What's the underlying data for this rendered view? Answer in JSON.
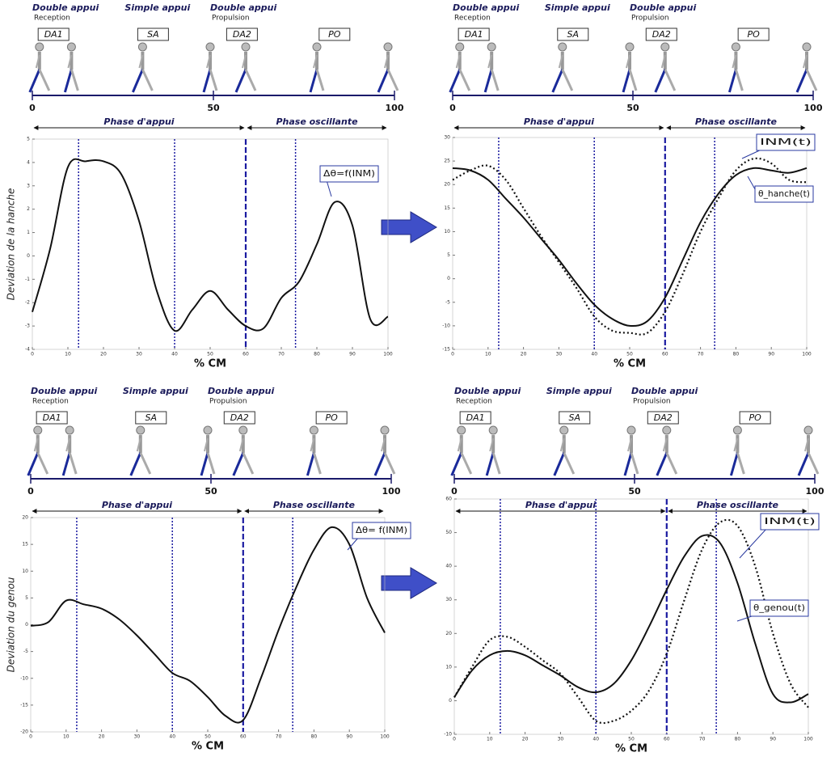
{
  "chart_data": [
    {
      "type": "line",
      "header": {
        "phases": [
          {
            "name": "Double appui",
            "sub": "Reception"
          },
          {
            "name": "Simple appui"
          },
          {
            "name": "Double appui",
            "sub": "Propulsion"
          }
        ],
        "boxes": [
          "DA1",
          "SA",
          "DA2",
          "PO"
        ],
        "scale_ticks": [
          0,
          50,
          100
        ],
        "support": "Phase d'appui",
        "swing": "Phase oscillante"
      },
      "ylabel": "Deviation de la hanche",
      "xlabel": "% CM",
      "x": [
        0,
        5,
        10,
        15,
        20,
        25,
        30,
        35,
        40,
        45,
        50,
        55,
        60,
        65,
        70,
        75,
        80,
        85,
        90,
        95,
        100
      ],
      "series": [
        {
          "name": "Δθ=f(INM)",
          "color": "#111111",
          "dash": false,
          "values": [
            -2.4,
            0.3,
            3.8,
            4.05,
            4.05,
            3.5,
            1.5,
            -1.5,
            -3.2,
            -2.3,
            -1.5,
            -2.3,
            -3.0,
            -3.1,
            -1.8,
            -1.1,
            0.5,
            2.3,
            1.3,
            -2.7,
            -2.6
          ]
        }
      ],
      "vlines": [
        13,
        40,
        60,
        74
      ],
      "xlim": [
        0,
        100
      ],
      "xticks": [
        0,
        10,
        20,
        30,
        40,
        50,
        60,
        70,
        80,
        90,
        100
      ],
      "ylim": [
        -4,
        5
      ],
      "yticks": [
        -4,
        -3,
        -2,
        -1,
        0,
        1,
        2,
        3,
        4,
        5
      ]
    },
    {
      "type": "line",
      "header": {
        "phases": [
          {
            "name": "Double appui",
            "sub": "Reception"
          },
          {
            "name": "Simple appui"
          },
          {
            "name": "Double appui",
            "sub": "Propulsion"
          }
        ],
        "boxes": [
          "DA1",
          "SA",
          "DA2",
          "PO"
        ],
        "scale_ticks": [
          0,
          50,
          100
        ],
        "support": "Phase d'appui",
        "swing": "Phase oscillante"
      },
      "xlabel": "% CM",
      "x": [
        0,
        5,
        10,
        15,
        20,
        25,
        30,
        35,
        40,
        45,
        50,
        55,
        60,
        65,
        70,
        75,
        80,
        85,
        90,
        95,
        100
      ],
      "series": [
        {
          "name": "INM(t)",
          "color": "#111111",
          "dash": true,
          "values": [
            21,
            23,
            24,
            21,
            15,
            9,
            3.5,
            -2,
            -8,
            -11,
            -11.5,
            -11.5,
            -7,
            1,
            10,
            17,
            23,
            25.5,
            24.5,
            21,
            20.5
          ]
        },
        {
          "name": "θ_hanche(t)",
          "color": "#111111",
          "dash": false,
          "values": [
            23.5,
            23,
            21,
            17,
            13,
            8.5,
            4,
            -1,
            -5.5,
            -8.5,
            -10,
            -9,
            -4,
            4,
            12,
            18,
            22,
            23.5,
            23,
            22.5,
            23.5
          ]
        }
      ],
      "vlines": [
        13,
        40,
        60,
        74
      ],
      "xlim": [
        0,
        100
      ],
      "xticks": [
        0,
        10,
        20,
        30,
        40,
        50,
        60,
        70,
        80,
        90,
        100
      ],
      "ylim": [
        -15,
        30
      ],
      "yticks": [
        -15,
        -10,
        -5,
        0,
        5,
        10,
        15,
        20,
        25,
        30
      ]
    },
    {
      "type": "line",
      "header": {
        "phases": [
          {
            "name": "Double appui",
            "sub": "Reception"
          },
          {
            "name": "Simple appui"
          },
          {
            "name": "Double appui",
            "sub": "Propulsion"
          }
        ],
        "boxes": [
          "DA1",
          "SA",
          "DA2",
          "PO"
        ],
        "scale_ticks": [
          0,
          50,
          100
        ],
        "support": "Phase d'appui",
        "swing": "Phase oscillante"
      },
      "ylabel": "Deviation du genou",
      "xlabel": "% CM",
      "x": [
        0,
        5,
        10,
        15,
        20,
        25,
        30,
        35,
        40,
        45,
        50,
        55,
        60,
        65,
        70,
        75,
        80,
        85,
        90,
        95,
        100
      ],
      "series": [
        {
          "name": "Δθ= f(INM)",
          "color": "#111111",
          "dash": false,
          "values": [
            -0.2,
            0.5,
            4.5,
            3.8,
            3,
            1,
            -2,
            -5.5,
            -9,
            -10.5,
            -13.5,
            -17,
            -17.8,
            -10,
            -1,
            7,
            14,
            18.2,
            15,
            5,
            -1.5
          ]
        }
      ],
      "vlines": [
        13,
        40,
        60,
        74
      ],
      "xlim": [
        0,
        100
      ],
      "xticks": [
        0,
        10,
        20,
        30,
        40,
        50,
        60,
        70,
        80,
        90,
        100
      ],
      "ylim": [
        -20,
        20
      ],
      "yticks": [
        -20,
        -15,
        -10,
        -5,
        0,
        5,
        10,
        15,
        20
      ]
    },
    {
      "type": "line",
      "header": {
        "phases": [
          {
            "name": "Double appui",
            "sub": "Reception"
          },
          {
            "name": "Simple appui"
          },
          {
            "name": "Double appui",
            "sub": "Propulsion"
          }
        ],
        "boxes": [
          "DA1",
          "SA",
          "DA2",
          "PO"
        ],
        "scale_ticks": [
          0,
          50,
          100
        ],
        "support": "Phase d'appui",
        "swing": "Phase oscillante"
      },
      "xlabel": "% CM",
      "x": [
        0,
        5,
        10,
        15,
        20,
        25,
        30,
        35,
        40,
        45,
        50,
        55,
        60,
        65,
        70,
        75,
        80,
        85,
        90,
        95,
        100
      ],
      "series": [
        {
          "name": "INM(t)",
          "color": "#111111",
          "dash": true,
          "values": [
            1,
            10,
            18,
            19,
            16,
            12,
            8,
            1,
            -6,
            -6,
            -3,
            3,
            14,
            30,
            45,
            53,
            52,
            40,
            20,
            5,
            -2
          ]
        },
        {
          "name": "θ_genou(t)",
          "color": "#111111",
          "dash": false,
          "values": [
            1,
            9,
            13.5,
            14.8,
            13.5,
            10.5,
            7.5,
            4,
            2.5,
            5,
            12,
            22,
            33,
            43,
            49,
            47,
            35,
            17,
            2,
            -0.5,
            2
          ]
        }
      ],
      "vlines": [
        13,
        40,
        60,
        74
      ],
      "xlim": [
        0,
        100
      ],
      "xticks": [
        0,
        10,
        20,
        30,
        40,
        50,
        60,
        70,
        80,
        90,
        100
      ],
      "ylim": [
        -10,
        60
      ],
      "yticks": [
        -10,
        0,
        10,
        20,
        30,
        40,
        50,
        60
      ]
    }
  ]
}
